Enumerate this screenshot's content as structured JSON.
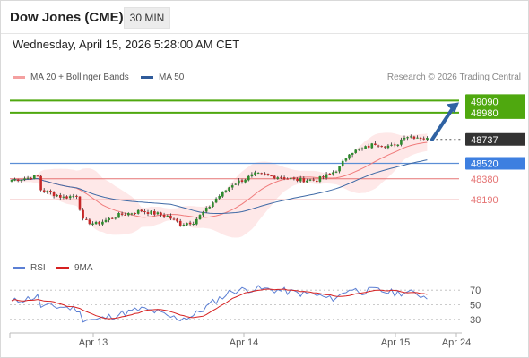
{
  "header": {
    "title": "Dow Jones (CME)",
    "timeframe": "30 MIN",
    "datetime": "Wednesday, April 15, 2026 5:28:00 AM CET"
  },
  "legend": {
    "ma20_label": "MA 20 + Bollinger Bands",
    "ma50_label": "MA 50",
    "credit": "Research © 2026 Trading Central",
    "rsi_label": "RSI",
    "ma9_label": "9MA"
  },
  "colors": {
    "bull": "#2e8b2e",
    "bear": "#c62828",
    "ma20": "#f07b7b",
    "band_fill": "#fde0e0",
    "ma50": "#3f6aa6",
    "resistance": "#4fa80f",
    "support": "#e57373",
    "pivot": "#5b8ed6",
    "current": "#333333",
    "arrow": "#2f62a3",
    "rsi": "#5b7fd4",
    "rsi_ma": "#d62020"
  },
  "chart_data": [
    {
      "type": "candlestick",
      "title": "Dow Jones (CME)",
      "timeframe": "30 MIN",
      "x_ticks": [
        "Apr 13",
        "Apr 14",
        "Apr 15",
        "Apr 24"
      ],
      "ylim": [
        47850,
        49150
      ],
      "series": [
        {
          "name": "MA 20 + Bollinger Bands"
        },
        {
          "name": "MA 50"
        }
      ],
      "price_levels": [
        {
          "role": "resistance",
          "value": "49090",
          "num": 49090
        },
        {
          "role": "resistance",
          "value": "48980",
          "num": 48980
        },
        {
          "role": "current",
          "value": "48737",
          "num": 48737
        },
        {
          "role": "pivot",
          "value": "48520",
          "num": 48520
        },
        {
          "role": "support",
          "value": "48380",
          "num": 48380
        },
        {
          "role": "support",
          "value": "48190",
          "num": 48190
        }
      ],
      "forecast_arrow": {
        "from": 48737,
        "to": 49090
      },
      "anchors": [
        [
          0,
          48370
        ],
        [
          8,
          48400
        ],
        [
          9,
          48280
        ],
        [
          16,
          48210
        ],
        [
          20,
          48230
        ],
        [
          22,
          48000
        ],
        [
          26,
          47970
        ],
        [
          33,
          48050
        ],
        [
          40,
          48090
        ],
        [
          45,
          48060
        ],
        [
          48,
          48040
        ],
        [
          52,
          47970
        ],
        [
          56,
          47990
        ],
        [
          60,
          48100
        ],
        [
          63,
          48200
        ],
        [
          68,
          48330
        ],
        [
          75,
          48420
        ],
        [
          82,
          48400
        ],
        [
          88,
          48370
        ],
        [
          94,
          48370
        ],
        [
          98,
          48420
        ],
        [
          101,
          48480
        ],
        [
          104,
          48620
        ],
        [
          108,
          48650
        ],
        [
          112,
          48700
        ],
        [
          118,
          48670
        ],
        [
          121,
          48770
        ],
        [
          125,
          48760
        ],
        [
          128,
          48740
        ]
      ]
    },
    {
      "type": "line",
      "title": "RSI",
      "series": [
        {
          "name": "RSI"
        },
        {
          "name": "9MA"
        }
      ],
      "ylim": [
        20,
        80
      ],
      "y_ticks": [
        70,
        50,
        30
      ],
      "anchors": [
        [
          0,
          54
        ],
        [
          8,
          61
        ],
        [
          9,
          48
        ],
        [
          16,
          47
        ],
        [
          20,
          44
        ],
        [
          22,
          31
        ],
        [
          26,
          29
        ],
        [
          33,
          37
        ],
        [
          40,
          44
        ],
        [
          45,
          40
        ],
        [
          48,
          34
        ],
        [
          52,
          31
        ],
        [
          56,
          35
        ],
        [
          60,
          47
        ],
        [
          63,
          56
        ],
        [
          68,
          69
        ],
        [
          75,
          72
        ],
        [
          82,
          70
        ],
        [
          88,
          66
        ],
        [
          94,
          63
        ],
        [
          98,
          58
        ],
        [
          101,
          62
        ],
        [
          104,
          72
        ],
        [
          108,
          68
        ],
        [
          112,
          70
        ],
        [
          118,
          66
        ],
        [
          121,
          67
        ],
        [
          125,
          65
        ],
        [
          128,
          60
        ]
      ]
    }
  ]
}
